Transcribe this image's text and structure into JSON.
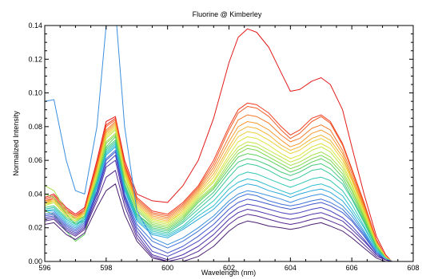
{
  "chart_data": {
    "type": "line",
    "title": "Fluorine @ Kimberley",
    "xlabel": "Wavelength (nm)",
    "ylabel": "Normalized Intensity",
    "xlim": [
      596,
      608
    ],
    "ylim": [
      0,
      0.14
    ],
    "grid": false,
    "legend": "none",
    "x_ticks": [
      596,
      598,
      600,
      602,
      604,
      606,
      608
    ],
    "y_ticks": [
      0.0,
      0.02,
      0.04,
      0.06,
      0.08,
      0.1,
      0.12,
      0.14
    ],
    "x_tick_labels": [
      "596",
      "598",
      "600",
      "602",
      "604",
      "606",
      "608"
    ],
    "y_tick_labels": [
      "0.00",
      "0.02",
      "0.04",
      "0.06",
      "0.08",
      "0.10",
      "0.12",
      "0.14"
    ],
    "x": [
      596.0,
      596.3,
      596.7,
      597.0,
      597.3,
      597.7,
      598.0,
      598.3,
      598.6,
      599.0,
      599.5,
      600.0,
      600.5,
      601.0,
      601.5,
      602.0,
      602.3,
      602.6,
      602.9,
      603.3,
      603.7,
      604.0,
      604.3,
      604.7,
      605.0,
      605.3,
      605.7,
      606.0,
      606.4,
      606.8,
      607.1,
      607.3
    ],
    "series": [
      {
        "color": "#e41b1b",
        "values": [
          0.038,
          0.04,
          0.032,
          0.028,
          0.032,
          0.06,
          0.083,
          0.086,
          0.06,
          0.04,
          0.036,
          0.035,
          0.045,
          0.06,
          0.085,
          0.118,
          0.133,
          0.138,
          0.136,
          0.127,
          0.112,
          0.101,
          0.102,
          0.107,
          0.109,
          0.105,
          0.09,
          0.068,
          0.04,
          0.015,
          0.004,
          0.0
        ]
      },
      {
        "color": "#f03a1e",
        "values": [
          0.037,
          0.039,
          0.031,
          0.027,
          0.031,
          0.058,
          0.081,
          0.085,
          0.058,
          0.038,
          0.03,
          0.028,
          0.035,
          0.045,
          0.06,
          0.08,
          0.09,
          0.094,
          0.093,
          0.088,
          0.08,
          0.075,
          0.078,
          0.085,
          0.087,
          0.083,
          0.07,
          0.055,
          0.035,
          0.013,
          0.003,
          0.0
        ]
      },
      {
        "color": "#f25a25",
        "values": [
          0.036,
          0.038,
          0.03,
          0.027,
          0.03,
          0.057,
          0.08,
          0.084,
          0.057,
          0.037,
          0.029,
          0.027,
          0.034,
          0.044,
          0.058,
          0.078,
          0.088,
          0.092,
          0.091,
          0.086,
          0.078,
          0.073,
          0.076,
          0.083,
          0.086,
          0.082,
          0.069,
          0.054,
          0.034,
          0.012,
          0.003,
          0.0
        ]
      },
      {
        "color": "#f47a2a",
        "values": [
          0.036,
          0.037,
          0.029,
          0.026,
          0.03,
          0.056,
          0.078,
          0.083,
          0.056,
          0.036,
          0.028,
          0.026,
          0.033,
          0.043,
          0.056,
          0.074,
          0.084,
          0.087,
          0.086,
          0.082,
          0.075,
          0.071,
          0.073,
          0.079,
          0.081,
          0.078,
          0.066,
          0.052,
          0.033,
          0.012,
          0.003,
          0.0
        ]
      },
      {
        "color": "#f59a30",
        "values": [
          0.035,
          0.037,
          0.029,
          0.026,
          0.029,
          0.055,
          0.077,
          0.082,
          0.055,
          0.035,
          0.027,
          0.025,
          0.032,
          0.042,
          0.054,
          0.071,
          0.08,
          0.083,
          0.082,
          0.078,
          0.072,
          0.068,
          0.07,
          0.076,
          0.078,
          0.075,
          0.064,
          0.05,
          0.032,
          0.011,
          0.003,
          0.0
        ]
      },
      {
        "color": "#f3b535",
        "values": [
          0.035,
          0.036,
          0.028,
          0.025,
          0.029,
          0.054,
          0.076,
          0.081,
          0.054,
          0.034,
          0.026,
          0.024,
          0.031,
          0.041,
          0.052,
          0.068,
          0.077,
          0.08,
          0.079,
          0.075,
          0.069,
          0.066,
          0.068,
          0.073,
          0.075,
          0.072,
          0.062,
          0.049,
          0.031,
          0.011,
          0.003,
          0.0
        ]
      },
      {
        "color": "#ecd23c",
        "values": [
          0.034,
          0.036,
          0.028,
          0.025,
          0.028,
          0.053,
          0.075,
          0.08,
          0.053,
          0.033,
          0.025,
          0.023,
          0.03,
          0.04,
          0.05,
          0.066,
          0.074,
          0.077,
          0.076,
          0.072,
          0.067,
          0.064,
          0.066,
          0.071,
          0.073,
          0.07,
          0.06,
          0.048,
          0.03,
          0.011,
          0.003,
          0.0
        ]
      },
      {
        "color": "#dde43f",
        "values": [
          0.034,
          0.035,
          0.027,
          0.024,
          0.028,
          0.052,
          0.074,
          0.079,
          0.052,
          0.033,
          0.025,
          0.023,
          0.029,
          0.039,
          0.048,
          0.063,
          0.071,
          0.074,
          0.073,
          0.069,
          0.064,
          0.061,
          0.063,
          0.068,
          0.07,
          0.067,
          0.058,
          0.046,
          0.029,
          0.01,
          0.002,
          0.0
        ]
      },
      {
        "color": "#c2e544",
        "values": [
          0.033,
          0.035,
          0.027,
          0.024,
          0.027,
          0.051,
          0.073,
          0.078,
          0.051,
          0.032,
          0.024,
          0.022,
          0.028,
          0.038,
          0.047,
          0.061,
          0.068,
          0.071,
          0.07,
          0.066,
          0.062,
          0.059,
          0.061,
          0.066,
          0.068,
          0.065,
          0.056,
          0.045,
          0.028,
          0.01,
          0.002,
          0.0
        ]
      },
      {
        "color": "#a2e04a",
        "values": [
          0.045,
          0.042,
          0.03,
          0.025,
          0.026,
          0.05,
          0.071,
          0.076,
          0.049,
          0.031,
          0.023,
          0.021,
          0.027,
          0.037,
          0.045,
          0.059,
          0.066,
          0.069,
          0.068,
          0.064,
          0.06,
          0.057,
          0.059,
          0.063,
          0.065,
          0.062,
          0.054,
          0.043,
          0.027,
          0.01,
          0.002,
          0.0
        ]
      },
      {
        "color": "#7fd84f",
        "values": [
          0.04,
          0.038,
          0.028,
          0.022,
          0.024,
          0.048,
          0.07,
          0.075,
          0.048,
          0.03,
          0.022,
          0.02,
          0.026,
          0.036,
          0.044,
          0.057,
          0.064,
          0.067,
          0.066,
          0.062,
          0.058,
          0.055,
          0.057,
          0.061,
          0.063,
          0.06,
          0.052,
          0.042,
          0.026,
          0.009,
          0.002,
          0.0
        ]
      },
      {
        "color": "#5ccf5c",
        "values": [
          0.03,
          0.028,
          0.018,
          0.012,
          0.016,
          0.045,
          0.068,
          0.074,
          0.046,
          0.028,
          0.021,
          0.019,
          0.025,
          0.035,
          0.043,
          0.055,
          0.062,
          0.064,
          0.063,
          0.06,
          0.056,
          0.053,
          0.055,
          0.059,
          0.061,
          0.058,
          0.05,
          0.04,
          0.025,
          0.009,
          0.002,
          0.0
        ]
      },
      {
        "color": "#45c97a",
        "values": [
          0.032,
          0.033,
          0.026,
          0.023,
          0.027,
          0.048,
          0.067,
          0.072,
          0.046,
          0.028,
          0.02,
          0.018,
          0.024,
          0.033,
          0.041,
          0.053,
          0.059,
          0.061,
          0.06,
          0.057,
          0.053,
          0.051,
          0.053,
          0.057,
          0.058,
          0.055,
          0.048,
          0.038,
          0.024,
          0.008,
          0.002,
          0.0
        ]
      },
      {
        "color": "#38c89a",
        "values": [
          0.031,
          0.032,
          0.025,
          0.022,
          0.026,
          0.047,
          0.066,
          0.071,
          0.045,
          0.027,
          0.019,
          0.017,
          0.023,
          0.031,
          0.039,
          0.05,
          0.056,
          0.058,
          0.057,
          0.054,
          0.05,
          0.048,
          0.05,
          0.054,
          0.055,
          0.052,
          0.046,
          0.037,
          0.023,
          0.008,
          0.002,
          0.0
        ]
      },
      {
        "color": "#2fc6b6",
        "values": [
          0.031,
          0.032,
          0.025,
          0.022,
          0.025,
          0.046,
          0.065,
          0.07,
          0.044,
          0.026,
          0.018,
          0.016,
          0.021,
          0.029,
          0.036,
          0.046,
          0.051,
          0.053,
          0.052,
          0.049,
          0.046,
          0.044,
          0.046,
          0.049,
          0.05,
          0.048,
          0.042,
          0.034,
          0.021,
          0.007,
          0.002,
          0.0
        ]
      },
      {
        "color": "#2bbdd0",
        "values": [
          0.03,
          0.031,
          0.024,
          0.021,
          0.025,
          0.045,
          0.064,
          0.069,
          0.043,
          0.025,
          0.017,
          0.015,
          0.02,
          0.027,
          0.033,
          0.043,
          0.047,
          0.049,
          0.048,
          0.045,
          0.042,
          0.04,
          0.042,
          0.045,
          0.046,
          0.044,
          0.039,
          0.031,
          0.02,
          0.007,
          0.001,
          0.0
        ]
      },
      {
        "color": "#2aa8dc",
        "values": [
          0.03,
          0.03,
          0.023,
          0.02,
          0.024,
          0.044,
          0.063,
          0.068,
          0.042,
          0.024,
          0.016,
          0.014,
          0.019,
          0.025,
          0.031,
          0.04,
          0.044,
          0.046,
          0.045,
          0.042,
          0.04,
          0.038,
          0.04,
          0.042,
          0.043,
          0.041,
          0.036,
          0.029,
          0.018,
          0.006,
          0.001,
          0.0
        ]
      },
      {
        "color": "#3a8fe0",
        "values": [
          0.095,
          0.096,
          0.06,
          0.042,
          0.04,
          0.08,
          0.14,
          0.15,
          0.08,
          0.03,
          0.014,
          0.01,
          0.014,
          0.02,
          0.027,
          0.036,
          0.04,
          0.042,
          0.041,
          0.039,
          0.037,
          0.035,
          0.037,
          0.039,
          0.04,
          0.038,
          0.033,
          0.027,
          0.017,
          0.006,
          0.001,
          0.0
        ]
      },
      {
        "color": "#3d72d8",
        "values": [
          0.028,
          0.029,
          0.022,
          0.019,
          0.023,
          0.042,
          0.061,
          0.066,
          0.04,
          0.022,
          0.012,
          0.008,
          0.012,
          0.018,
          0.025,
          0.034,
          0.038,
          0.04,
          0.039,
          0.036,
          0.034,
          0.033,
          0.034,
          0.036,
          0.037,
          0.035,
          0.031,
          0.025,
          0.016,
          0.005,
          0.001,
          0.0
        ]
      },
      {
        "color": "#3f57cc",
        "values": [
          0.027,
          0.028,
          0.021,
          0.018,
          0.022,
          0.041,
          0.06,
          0.065,
          0.039,
          0.02,
          0.009,
          0.005,
          0.009,
          0.015,
          0.022,
          0.031,
          0.035,
          0.037,
          0.036,
          0.034,
          0.032,
          0.031,
          0.032,
          0.034,
          0.035,
          0.033,
          0.029,
          0.024,
          0.015,
          0.005,
          0.001,
          0.0
        ]
      },
      {
        "color": "#4641bd",
        "values": [
          0.026,
          0.027,
          0.02,
          0.017,
          0.021,
          0.04,
          0.058,
          0.063,
          0.038,
          0.018,
          0.006,
          0.003,
          0.007,
          0.012,
          0.019,
          0.028,
          0.032,
          0.034,
          0.033,
          0.031,
          0.029,
          0.028,
          0.029,
          0.031,
          0.032,
          0.03,
          0.026,
          0.021,
          0.013,
          0.004,
          0.001,
          0.0
        ]
      },
      {
        "color": "#4e32a8",
        "values": [
          0.025,
          0.026,
          0.019,
          0.016,
          0.02,
          0.038,
          0.056,
          0.06,
          0.036,
          0.016,
          0.004,
          0.001,
          0.004,
          0.009,
          0.016,
          0.025,
          0.029,
          0.031,
          0.03,
          0.028,
          0.026,
          0.025,
          0.026,
          0.028,
          0.029,
          0.027,
          0.024,
          0.019,
          0.012,
          0.004,
          0.001,
          0.0
        ]
      },
      {
        "color": "#55288f",
        "values": [
          0.024,
          0.025,
          0.018,
          0.015,
          0.019,
          0.036,
          0.05,
          0.054,
          0.033,
          0.014,
          0.003,
          0.0,
          0.002,
          0.006,
          0.013,
          0.022,
          0.026,
          0.028,
          0.027,
          0.025,
          0.023,
          0.022,
          0.023,
          0.025,
          0.026,
          0.024,
          0.021,
          0.017,
          0.01,
          0.003,
          0.001,
          0.0
        ]
      },
      {
        "color": "#4a1f70",
        "values": [
          0.022,
          0.023,
          0.016,
          0.013,
          0.017,
          0.032,
          0.042,
          0.046,
          0.028,
          0.012,
          0.002,
          0.0,
          0.0,
          0.003,
          0.009,
          0.018,
          0.022,
          0.024,
          0.023,
          0.021,
          0.02,
          0.019,
          0.02,
          0.022,
          0.023,
          0.021,
          0.018,
          0.014,
          0.008,
          0.002,
          0.0,
          0.0
        ]
      }
    ]
  }
}
